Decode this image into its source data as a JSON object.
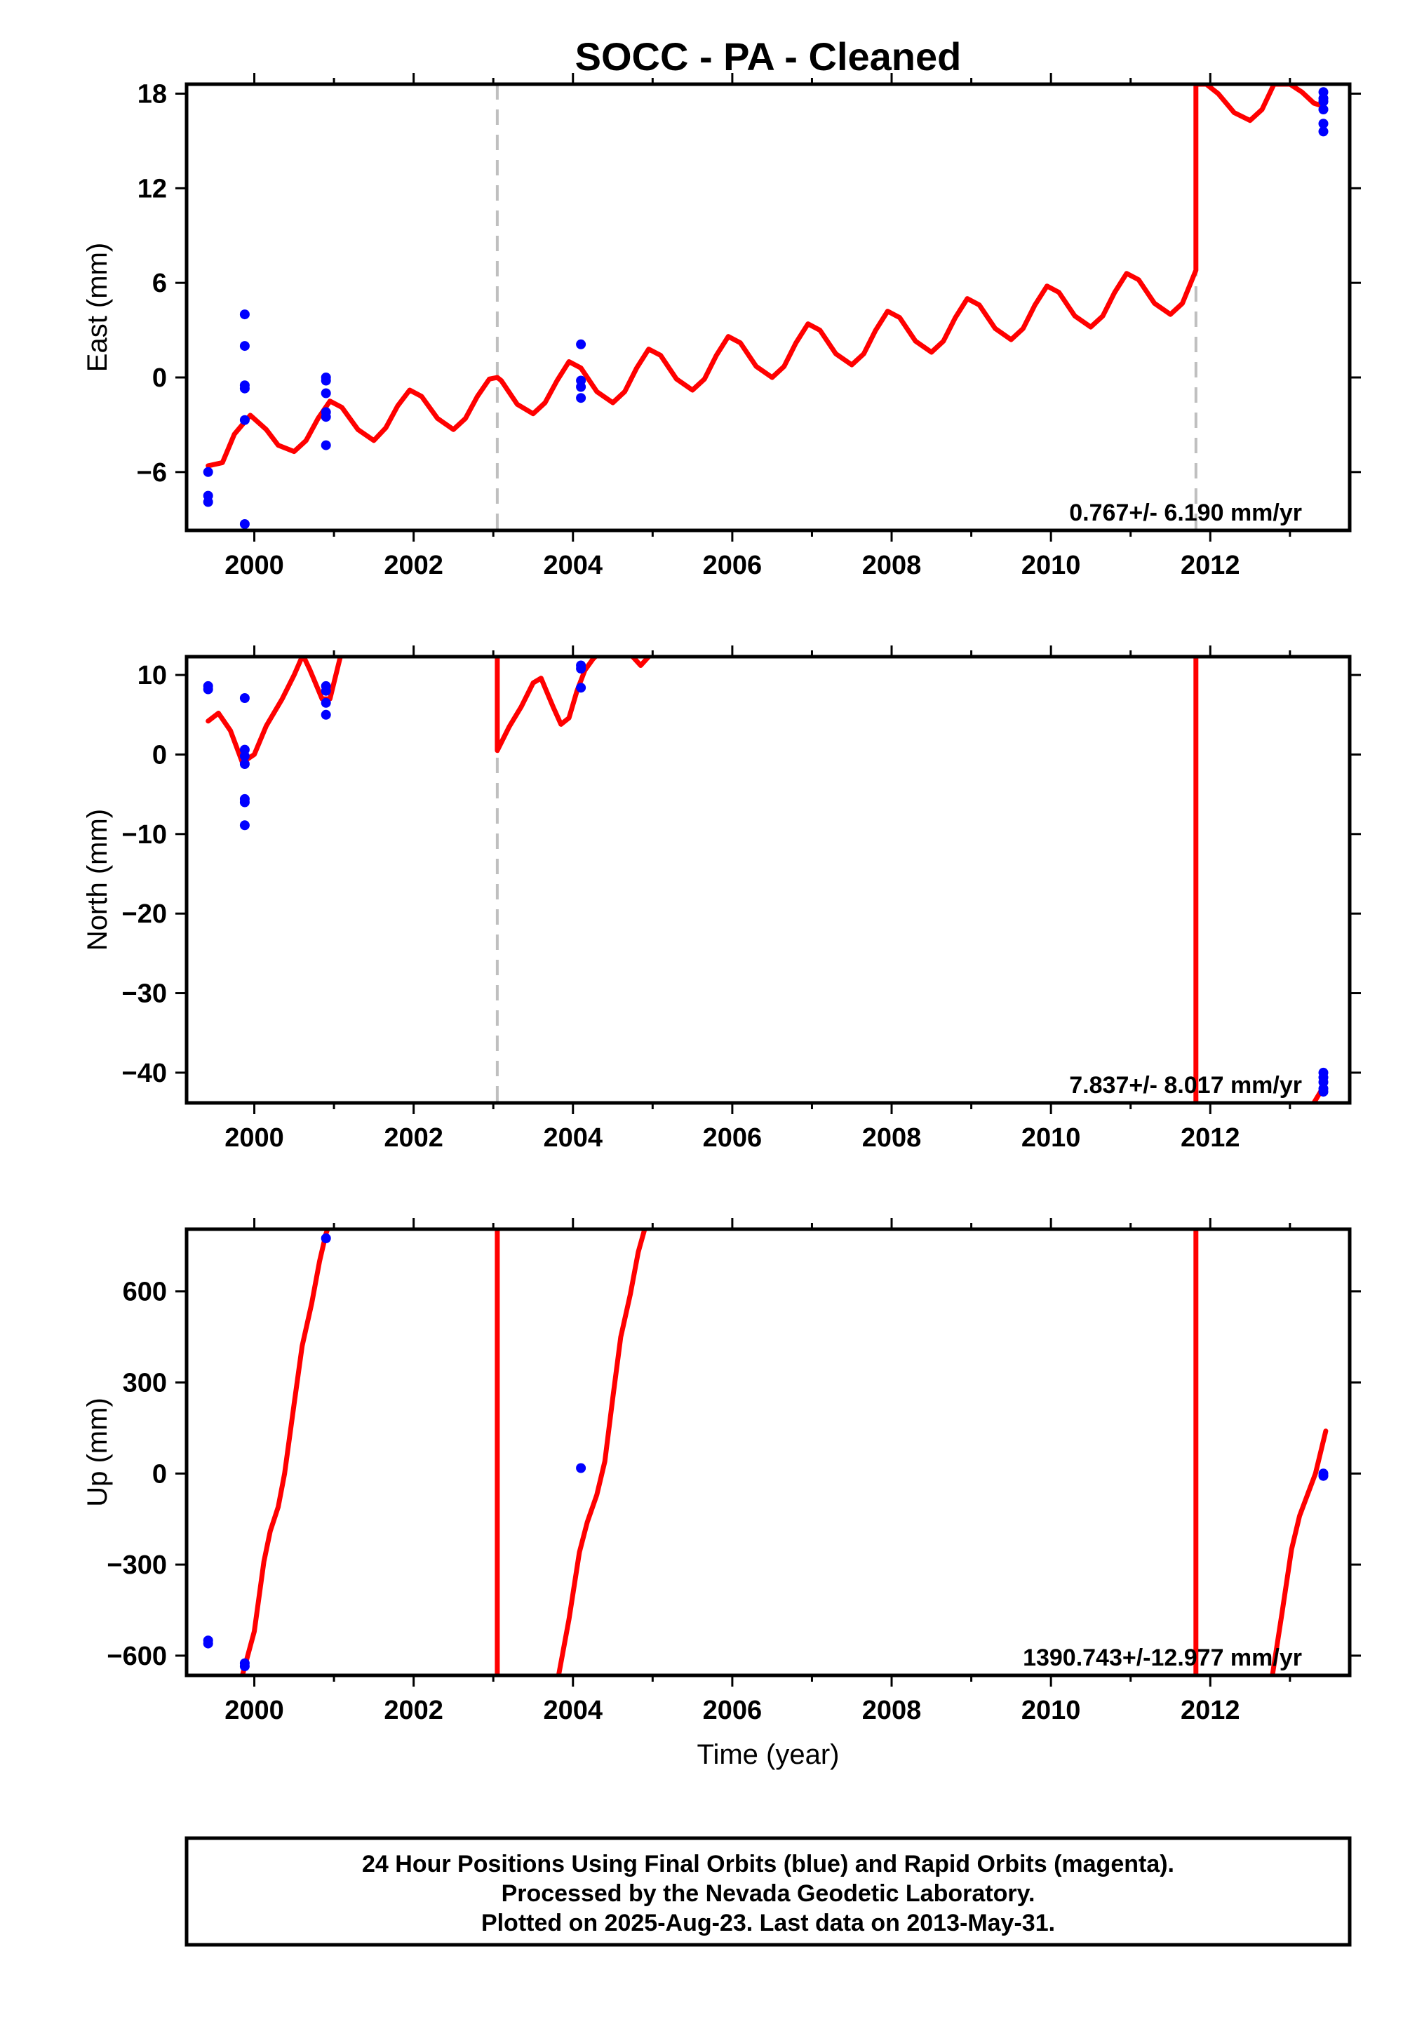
{
  "chart_data": [
    {
      "type": "scatter",
      "title": "SOCC  - PA - Cleaned",
      "ylabel": "East (mm)",
      "xlabel": "",
      "xlim": [
        1999.15,
        2013.75
      ],
      "ylim": [
        -9.7,
        18.6
      ],
      "xticks": [
        2000,
        2002,
        2004,
        2006,
        2008,
        2010,
        2012
      ],
      "xtick_labels": [
        "2000",
        "2002",
        "2004",
        "2006",
        "2008",
        "2010",
        "2012"
      ],
      "yticks": [
        -6,
        0,
        6,
        12,
        18
      ],
      "ytick_labels": [
        "−6",
        "0",
        "6",
        "12",
        "18"
      ],
      "rate": "0.767+/- 6.190 mm/yr",
      "breaks": [
        2003.05,
        2011.82
      ],
      "series": [
        {
          "kind": "observations",
          "color": "#0000ff",
          "points": [
            [
              1999.42,
              -6.0
            ],
            [
              1999.42,
              -7.5
            ],
            [
              1999.42,
              -7.9
            ],
            [
              1999.88,
              4.0
            ],
            [
              1999.88,
              2.0
            ],
            [
              1999.88,
              -0.5
            ],
            [
              1999.88,
              -0.7
            ],
            [
              1999.88,
              -2.7
            ],
            [
              1999.88,
              -9.3
            ],
            [
              2000.9,
              0.0
            ],
            [
              2000.9,
              -0.2
            ],
            [
              2000.9,
              -1.0
            ],
            [
              2000.9,
              -2.2
            ],
            [
              2000.9,
              -2.5
            ],
            [
              2000.9,
              -4.3
            ],
            [
              2004.1,
              2.1
            ],
            [
              2004.1,
              -0.2
            ],
            [
              2004.1,
              -0.6
            ],
            [
              2004.1,
              -1.3
            ],
            [
              2013.42,
              18.1
            ],
            [
              2013.42,
              17.7
            ],
            [
              2013.42,
              17.5
            ],
            [
              2013.42,
              17.0
            ],
            [
              2013.42,
              16.1
            ],
            [
              2013.42,
              15.6
            ]
          ]
        },
        {
          "kind": "model",
          "color": "#ff0000",
          "points": [
            [
              1999.42,
              -5.6
            ],
            [
              1999.6,
              -5.4
            ],
            [
              1999.75,
              -3.6
            ],
            [
              1999.95,
              -2.4
            ],
            [
              2000.15,
              -3.3
            ],
            [
              2000.3,
              -4.3
            ],
            [
              2000.5,
              -4.7
            ],
            [
              2000.65,
              -4.0
            ],
            [
              2000.8,
              -2.6
            ],
            [
              2000.95,
              -1.5
            ],
            [
              2001.1,
              -1.9
            ],
            [
              2001.3,
              -3.3
            ],
            [
              2001.5,
              -4.0
            ],
            [
              2001.65,
              -3.2
            ],
            [
              2001.8,
              -1.8
            ],
            [
              2001.95,
              -0.8
            ],
            [
              2002.1,
              -1.2
            ],
            [
              2002.3,
              -2.6
            ],
            [
              2002.5,
              -3.3
            ],
            [
              2002.65,
              -2.6
            ],
            [
              2002.8,
              -1.2
            ],
            [
              2002.95,
              -0.1
            ],
            [
              2003.05,
              0.0
            ],
            [
              2003.1,
              -0.2
            ],
            [
              2003.3,
              -1.7
            ],
            [
              2003.5,
              -2.3
            ],
            [
              2003.65,
              -1.6
            ],
            [
              2003.8,
              -0.2
            ],
            [
              2003.95,
              1.0
            ],
            [
              2004.1,
              0.6
            ],
            [
              2004.3,
              -0.9
            ],
            [
              2004.5,
              -1.6
            ],
            [
              2004.65,
              -0.9
            ],
            [
              2004.8,
              0.6
            ],
            [
              2004.95,
              1.8
            ],
            [
              2005.1,
              1.4
            ],
            [
              2005.3,
              -0.1
            ],
            [
              2005.5,
              -0.8
            ],
            [
              2005.65,
              -0.1
            ],
            [
              2005.8,
              1.4
            ],
            [
              2005.95,
              2.6
            ],
            [
              2006.1,
              2.2
            ],
            [
              2006.3,
              0.7
            ],
            [
              2006.5,
              0.0
            ],
            [
              2006.65,
              0.7
            ],
            [
              2006.8,
              2.2
            ],
            [
              2006.95,
              3.4
            ],
            [
              2007.1,
              3.0
            ],
            [
              2007.3,
              1.5
            ],
            [
              2007.5,
              0.8
            ],
            [
              2007.65,
              1.5
            ],
            [
              2007.8,
              3.0
            ],
            [
              2007.95,
              4.2
            ],
            [
              2008.1,
              3.8
            ],
            [
              2008.3,
              2.3
            ],
            [
              2008.5,
              1.6
            ],
            [
              2008.65,
              2.3
            ],
            [
              2008.8,
              3.8
            ],
            [
              2008.95,
              5.0
            ],
            [
              2009.1,
              4.6
            ],
            [
              2009.3,
              3.1
            ],
            [
              2009.5,
              2.4
            ],
            [
              2009.65,
              3.1
            ],
            [
              2009.8,
              4.6
            ],
            [
              2009.95,
              5.8
            ],
            [
              2010.1,
              5.4
            ],
            [
              2010.3,
              3.9
            ],
            [
              2010.5,
              3.2
            ],
            [
              2010.65,
              3.9
            ],
            [
              2010.8,
              5.4
            ],
            [
              2010.95,
              6.6
            ],
            [
              2011.1,
              6.2
            ],
            [
              2011.3,
              4.7
            ],
            [
              2011.5,
              4.0
            ],
            [
              2011.65,
              4.7
            ],
            [
              2011.82,
              6.8
            ],
            [
              2011.82,
              18.6
            ],
            [
              2011.95,
              18.6
            ],
            [
              2012.1,
              18.0
            ],
            [
              2012.3,
              16.8
            ],
            [
              2012.5,
              16.3
            ],
            [
              2012.65,
              17.0
            ],
            [
              2012.8,
              18.6
            ],
            [
              2013.0,
              18.6
            ],
            [
              2013.15,
              18.1
            ],
            [
              2013.3,
              17.4
            ],
            [
              2013.42,
              17.2
            ]
          ]
        }
      ]
    },
    {
      "type": "scatter",
      "title": "",
      "ylabel": "North (mm)",
      "xlabel": "",
      "xlim": [
        1999.15,
        2013.75
      ],
      "ylim": [
        -43.8,
        12.3
      ],
      "xticks": [
        2000,
        2002,
        2004,
        2006,
        2008,
        2010,
        2012
      ],
      "xtick_labels": [
        "2000",
        "2002",
        "2004",
        "2006",
        "2008",
        "2010",
        "2012"
      ],
      "yticks": [
        -40,
        -30,
        -20,
        -10,
        0,
        10
      ],
      "ytick_labels": [
        "−40",
        "−30",
        "−20",
        "−10",
        "0",
        "10"
      ],
      "rate": "7.837+/- 8.017 mm/yr",
      "breaks": [
        2003.05
      ],
      "series": [
        {
          "kind": "observations",
          "color": "#0000ff",
          "points": [
            [
              1999.42,
              8.6
            ],
            [
              1999.42,
              8.2
            ],
            [
              1999.88,
              7.1
            ],
            [
              1999.88,
              0.6
            ],
            [
              1999.88,
              -0.2
            ],
            [
              1999.88,
              -1.2
            ],
            [
              1999.88,
              -5.6
            ],
            [
              1999.88,
              -6.0
            ],
            [
              1999.88,
              -8.9
            ],
            [
              2000.9,
              8.6
            ],
            [
              2000.9,
              8.0
            ],
            [
              2000.9,
              6.5
            ],
            [
              2000.9,
              5.0
            ],
            [
              2004.1,
              11.2
            ],
            [
              2004.1,
              10.8
            ],
            [
              2004.1,
              8.4
            ],
            [
              2013.42,
              -40.0
            ],
            [
              2013.42,
              -40.6
            ],
            [
              2013.42,
              -41.2
            ],
            [
              2013.42,
              -42.0
            ],
            [
              2013.42,
              -42.4
            ]
          ]
        },
        {
          "kind": "model",
          "color": "#ff0000",
          "points": [
            [
              1999.42,
              4.2
            ],
            [
              1999.55,
              5.2
            ],
            [
              1999.7,
              3.0
            ],
            [
              1999.85,
              -1.0
            ],
            [
              2000.0,
              0.0
            ],
            [
              2000.15,
              3.6
            ],
            [
              2000.35,
              7.0
            ],
            [
              2000.5,
              10.0
            ],
            [
              2000.6,
              12.3
            ]
          ]
        },
        {
          "kind": "model",
          "color": "#ff0000",
          "points": [
            [
              2000.62,
              12.3
            ],
            [
              2000.7,
              10.6
            ],
            [
              2000.85,
              7.0
            ],
            [
              2000.95,
              7.0
            ],
            [
              2001.08,
              12.3
            ]
          ]
        },
        {
          "kind": "model",
          "color": "#ff0000",
          "points": [
            [
              2003.05,
              12.3
            ],
            [
              2003.05,
              0.5
            ],
            [
              2003.2,
              3.5
            ],
            [
              2003.35,
              6.0
            ],
            [
              2003.5,
              9.0
            ],
            [
              2003.6,
              9.6
            ],
            [
              2003.75,
              6.0
            ],
            [
              2003.85,
              3.8
            ],
            [
              2003.95,
              4.6
            ],
            [
              2004.05,
              8.0
            ],
            [
              2004.15,
              10.6
            ],
            [
              2004.25,
              12.0
            ],
            [
              2004.28,
              12.3
            ]
          ]
        },
        {
          "kind": "model",
          "color": "#ff0000",
          "points": [
            [
              2004.75,
              12.3
            ],
            [
              2004.85,
              11.2
            ],
            [
              2004.95,
              12.3
            ]
          ]
        },
        {
          "kind": "model",
          "color": "#ff0000",
          "points": [
            [
              2011.82,
              12.3
            ],
            [
              2011.82,
              -43.8
            ]
          ]
        },
        {
          "kind": "model",
          "color": "#ff0000",
          "points": [
            [
              2013.3,
              -43.8
            ],
            [
              2013.42,
              -41.8
            ]
          ]
        }
      ]
    },
    {
      "type": "scatter",
      "title": "",
      "ylabel": "Up (mm)",
      "xlabel": "Time (year)",
      "xlim": [
        1999.15,
        2013.75
      ],
      "ylim": [
        -665,
        805
      ],
      "xticks": [
        2000,
        2002,
        2004,
        2006,
        2008,
        2010,
        2012
      ],
      "xtick_labels": [
        "2000",
        "2002",
        "2004",
        "2006",
        "2008",
        "2010",
        "2012"
      ],
      "yticks": [
        -600,
        -300,
        0,
        300,
        600
      ],
      "ytick_labels": [
        "−600",
        "−300",
        "0",
        "300",
        "600"
      ],
      "rate": "1390.743+/-12.977 mm/yr",
      "breaks": [],
      "series": [
        {
          "kind": "observations",
          "color": "#0000ff",
          "points": [
            [
              1999.42,
              -550
            ],
            [
              1999.42,
              -560
            ],
            [
              1999.88,
              -625
            ],
            [
              1999.88,
              -635
            ],
            [
              2000.9,
              775
            ],
            [
              2004.1,
              18
            ],
            [
              2013.42,
              0
            ],
            [
              2013.42,
              -8
            ]
          ]
        },
        {
          "kind": "model",
          "color": "#ff0000",
          "points": [
            [
              1999.85,
              -665
            ],
            [
              2000.0,
              -520
            ],
            [
              2000.12,
              -290
            ],
            [
              2000.2,
              -190
            ],
            [
              2000.3,
              -110
            ],
            [
              2000.38,
              0
            ],
            [
              2000.5,
              230
            ],
            [
              2000.6,
              420
            ],
            [
              2000.72,
              560
            ],
            [
              2000.82,
              700
            ],
            [
              2000.9,
              790
            ],
            [
              2000.92,
              805
            ]
          ]
        },
        {
          "kind": "model",
          "color": "#ff0000",
          "points": [
            [
              2003.05,
              805
            ],
            [
              2003.05,
              -665
            ]
          ]
        },
        {
          "kind": "model",
          "color": "#ff0000",
          "points": [
            [
              2003.82,
              -665
            ],
            [
              2003.95,
              -480
            ],
            [
              2004.08,
              -260
            ],
            [
              2004.18,
              -160
            ],
            [
              2004.3,
              -70
            ],
            [
              2004.4,
              40
            ],
            [
              2004.5,
              250
            ],
            [
              2004.6,
              450
            ],
            [
              2004.72,
              590
            ],
            [
              2004.82,
              730
            ],
            [
              2004.9,
              805
            ]
          ]
        },
        {
          "kind": "model",
          "color": "#ff0000",
          "points": [
            [
              2011.82,
              805
            ],
            [
              2011.82,
              -665
            ]
          ]
        },
        {
          "kind": "model",
          "color": "#ff0000",
          "points": [
            [
              2012.78,
              -665
            ],
            [
              2012.9,
              -460
            ],
            [
              2013.02,
              -250
            ],
            [
              2013.12,
              -140
            ],
            [
              2013.22,
              -70
            ],
            [
              2013.32,
              0
            ],
            [
              2013.45,
              140
            ]
          ]
        }
      ]
    }
  ],
  "footer": {
    "line1": "24 Hour Positions Using Final Orbits (blue) and Rapid Orbits (magenta).",
    "line2": "Processed by the Nevada Geodetic Laboratory.",
    "line3": "Plotted on 2025-Aug-23. Last data on 2013-May-31."
  }
}
